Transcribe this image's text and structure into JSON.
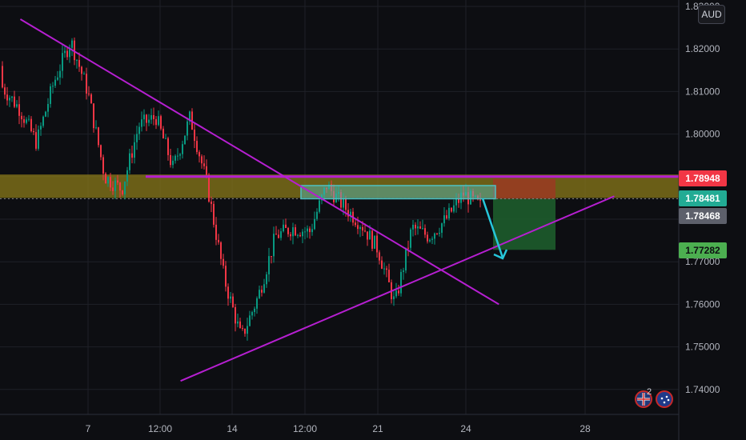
{
  "header": {
    "currency": "AUD"
  },
  "price_tags": [
    {
      "label": "1.78948",
      "color": "#f23645",
      "text_color": "#ffffff"
    },
    {
      "label": "1.78481",
      "color": "#22ab94",
      "text_color": "#ffffff"
    },
    {
      "label": "1.78468",
      "color": "#5d606b",
      "text_color": "#ffffff"
    },
    {
      "label": "1.77282",
      "color": "#4caf50",
      "text_color": "#0d0e12"
    }
  ],
  "flags": {
    "badge_count": "2"
  },
  "colors": {
    "background": "#0d0e12",
    "up_candle": "#089981",
    "down_candle": "#f23645",
    "trendline": "#b61fd1",
    "zone": "#8a7a1a",
    "target_zone": "#1d5c2c",
    "stop_zone": "#9a3a22",
    "entry_box": "#4fc1c1",
    "arrow": "#26c6da"
  },
  "chart_data": {
    "type": "candlestick",
    "symbol_currency": "AUD",
    "y_ticks": [
      "1.83000",
      "1.82000",
      "1.81000",
      "1.80000",
      "1.79000",
      "1.78000",
      "1.77000",
      "1.76000",
      "1.75000",
      "1.74000"
    ],
    "ylim": [
      1.736,
      1.83
    ],
    "x_ticks": [
      "7",
      "12:00",
      "14",
      "12:00",
      "21",
      "24",
      "28"
    ],
    "grid": true,
    "series": [
      {
        "name": "",
        "shape": "price path",
        "points": [
          [
            1.816,
            1.811
          ],
          [
            1.814,
            1.806
          ],
          [
            1.807,
            1.798
          ],
          [
            1.803,
            1.812
          ],
          [
            1.816,
            1.822
          ],
          [
            1.818,
            1.81
          ],
          [
            1.804,
            1.79
          ],
          [
            1.793,
            1.787
          ],
          [
            1.795,
            1.802
          ],
          [
            1.798,
            1.804
          ],
          [
            1.798,
            1.792
          ],
          [
            1.796,
            1.804
          ],
          [
            1.802,
            1.788
          ],
          [
            1.776,
            1.766
          ],
          [
            1.761,
            1.752
          ],
          [
            1.755,
            1.762
          ],
          [
            1.768,
            1.776
          ],
          [
            1.771,
            1.778
          ],
          [
            1.782,
            1.777
          ],
          [
            1.781,
            1.788
          ],
          [
            1.787,
            1.783
          ],
          [
            1.785,
            1.779
          ],
          [
            1.782,
            1.773
          ],
          [
            1.766,
            1.76
          ],
          [
            1.772,
            1.778
          ],
          [
            1.782,
            1.776
          ],
          [
            1.775,
            1.78
          ],
          [
            1.784,
            1.786
          ],
          [
            1.789,
            1.783
          ]
        ]
      }
    ],
    "annotations": {
      "resistance_zone": [
        1.785,
        1.7905
      ],
      "resistance_line": 1.79,
      "descending_trendline": [
        [
          0.03,
          1.827
        ],
        [
          0.735,
          1.76
        ]
      ],
      "ascending_trendline": [
        [
          0.266,
          1.742
        ],
        [
          0.905,
          1.7854
        ]
      ],
      "entry_box": [
        1.7848,
        1.7879
      ],
      "stop_zone": [
        1.7848,
        1.7895
      ],
      "target_zone": [
        1.7728,
        1.7848
      ]
    }
  }
}
